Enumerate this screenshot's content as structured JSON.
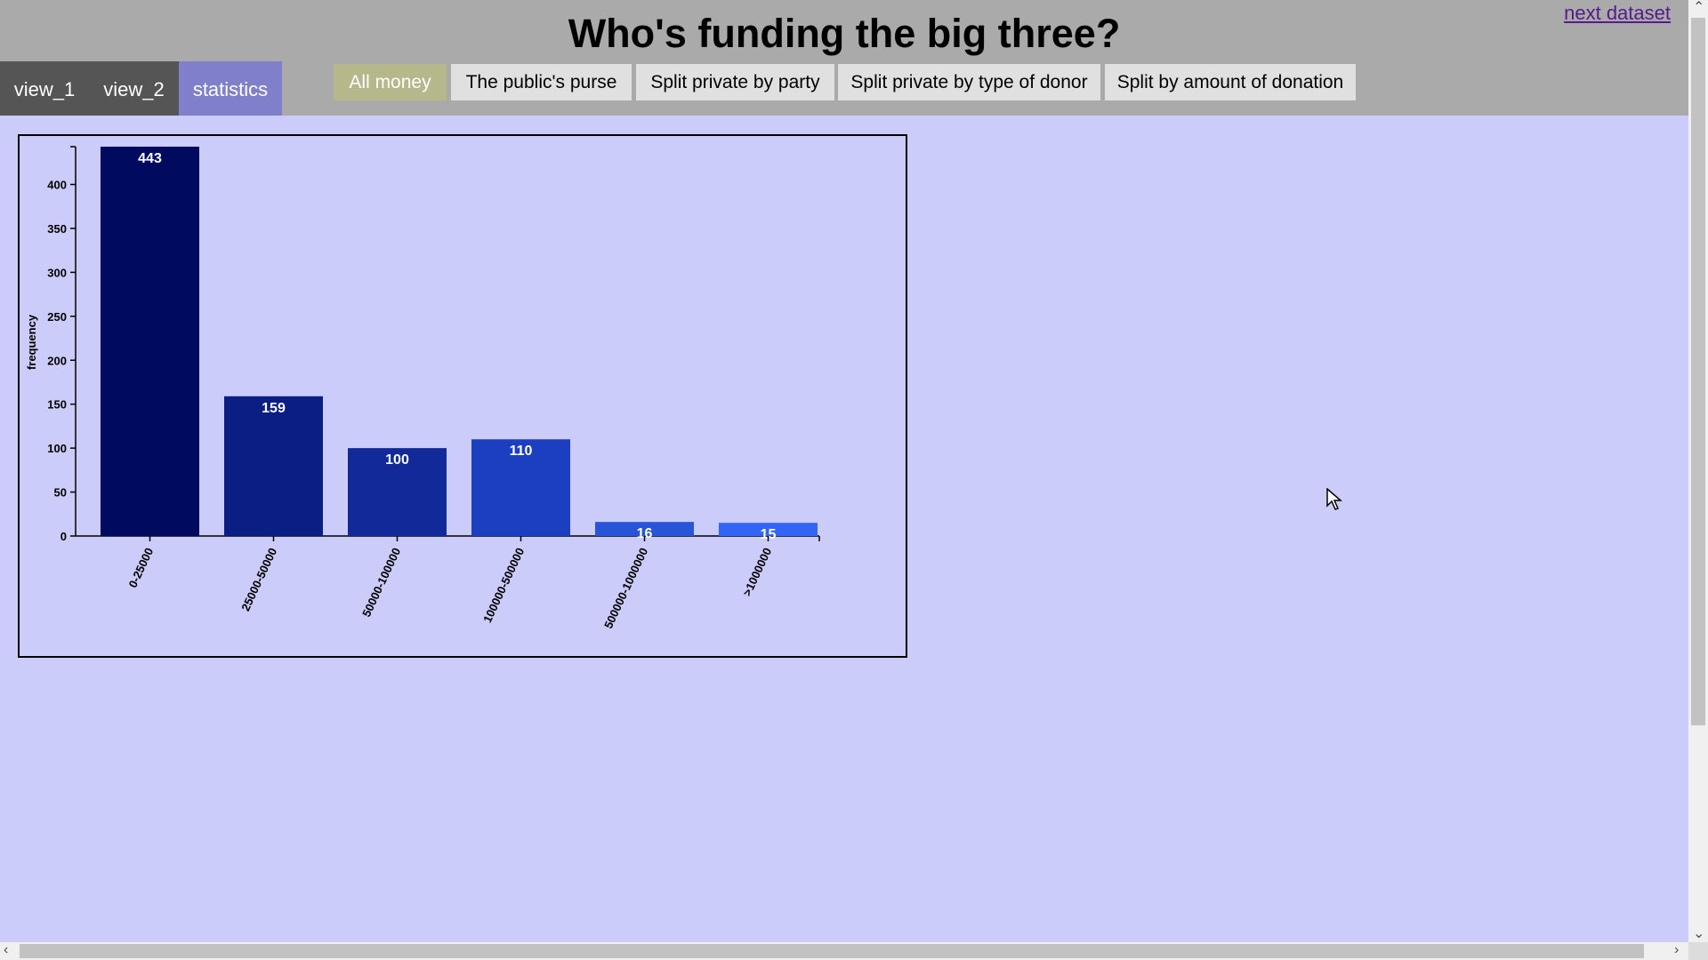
{
  "header": {
    "title": "Who's funding the big three?",
    "next_link": "next dataset"
  },
  "view_tabs": [
    "view_1",
    "view_2",
    "statistics"
  ],
  "mode_buttons": [
    "All money",
    "The public's purse",
    "Split private by party",
    "Split private by type of donor",
    "Split by amount of donation"
  ],
  "colors": {
    "header_bg": "#aaaaaa",
    "page_bg": "#ccccfa",
    "active_tab": "#7f7fcc",
    "active_button": "#b7b78c"
  },
  "chart_data": {
    "type": "bar",
    "categories": [
      "0-25000",
      "25000-50000",
      "50000-100000",
      "100000-500000",
      "500000-1000000",
      ">1000000"
    ],
    "values": [
      443,
      159,
      100,
      110,
      16,
      15
    ],
    "data_labels": [
      "443",
      "159",
      "100",
      "110",
      "16",
      "15"
    ],
    "ylabel": "frequency",
    "xlabel": "",
    "yticks": [
      "0",
      "50",
      "100",
      "150",
      "200",
      "250",
      "300",
      "350",
      "400"
    ],
    "ylim": [
      0,
      443
    ],
    "bar_colors": [
      "#000a5f",
      "#0a1e84",
      "#12299a",
      "#1c3fc2",
      "#2854d8",
      "#3264f5"
    ],
    "grid": false
  }
}
